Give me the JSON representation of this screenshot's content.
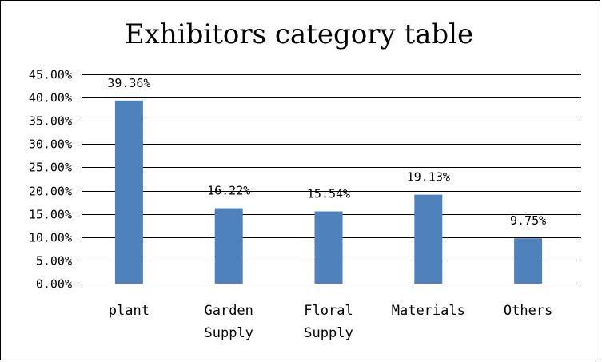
{
  "chart_data": {
    "type": "bar",
    "title": "Exhibitors category table",
    "xlabel": "",
    "ylabel": "",
    "categories": [
      [
        "plant"
      ],
      [
        "Garden",
        "Supply"
      ],
      [
        "Floral",
        "Supply"
      ],
      [
        "Materials"
      ],
      [
        "Others"
      ]
    ],
    "values": [
      39.36,
      16.22,
      15.54,
      19.13,
      9.75
    ],
    "data_labels": [
      "39.36%",
      "16.22%",
      "15.54%",
      "19.13%",
      "9.75%"
    ],
    "ylim": [
      0,
      45
    ],
    "y_ticks": [
      0,
      5,
      10,
      15,
      20,
      25,
      30,
      35,
      40,
      45
    ],
    "y_tick_labels": [
      "0.00%",
      "5.00%",
      "10.00%",
      "15.00%",
      "20.00%",
      "25.00%",
      "30.00%",
      "35.00%",
      "40.00%",
      "45.00%"
    ],
    "grid": true,
    "legend": "none",
    "colors": {
      "bar": "#4f81bd",
      "grid": "#000000",
      "text": "#000000"
    }
  }
}
